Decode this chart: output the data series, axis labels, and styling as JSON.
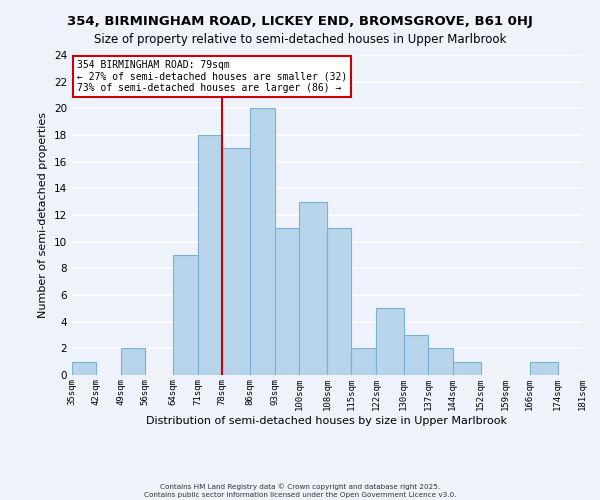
{
  "title": "354, BIRMINGHAM ROAD, LICKEY END, BROMSGROVE, B61 0HJ",
  "subtitle": "Size of property relative to semi-detached houses in Upper Marlbrook",
  "xlabel": "Distribution of semi-detached houses by size in Upper Marlbrook",
  "ylabel": "Number of semi-detached properties",
  "bin_edges": [
    35,
    42,
    49,
    56,
    64,
    71,
    78,
    86,
    93,
    100,
    108,
    115,
    122,
    130,
    137,
    144,
    152,
    159,
    166,
    174,
    181
  ],
  "bin_counts": [
    1,
    0,
    2,
    0,
    9,
    18,
    17,
    20,
    11,
    13,
    11,
    2,
    5,
    3,
    2,
    1,
    0,
    0,
    1,
    0
  ],
  "bar_color": "#b8d4ea",
  "bar_edge_color": "#7ab0d4",
  "vline_x": 78,
  "vline_color": "#cc0000",
  "annotation_title": "354 BIRMINGHAM ROAD: 79sqm",
  "annotation_line1": "← 27% of semi-detached houses are smaller (32)",
  "annotation_line2": "73% of semi-detached houses are larger (86) →",
  "annotation_box_facecolor": "#ffffff",
  "annotation_box_edgecolor": "#cc0000",
  "tick_labels": [
    "35sqm",
    "42sqm",
    "49sqm",
    "56sqm",
    "64sqm",
    "71sqm",
    "78sqm",
    "86sqm",
    "93sqm",
    "100sqm",
    "108sqm",
    "115sqm",
    "122sqm",
    "130sqm",
    "137sqm",
    "144sqm",
    "152sqm",
    "159sqm",
    "166sqm",
    "174sqm",
    "181sqm"
  ],
  "ylim": [
    0,
    24
  ],
  "yticks": [
    0,
    2,
    4,
    6,
    8,
    10,
    12,
    14,
    16,
    18,
    20,
    22,
    24
  ],
  "background_color": "#eef2fa",
  "grid_color": "#ffffff",
  "footer1": "Contains HM Land Registry data © Crown copyright and database right 2025.",
  "footer2": "Contains public sector information licensed under the Open Government Licence v3.0."
}
